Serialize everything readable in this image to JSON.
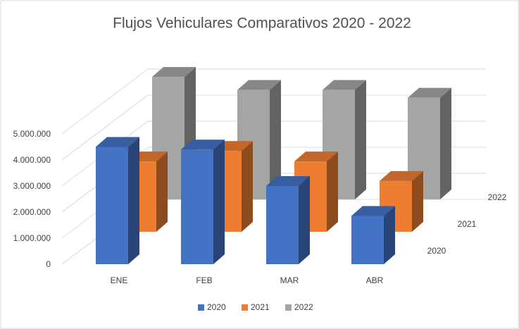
{
  "chart_data": {
    "type": "bar3d",
    "title": "Flujos Vehiculares Comparativos 2020 - 2022",
    "categories": [
      "ENE",
      "FEB",
      "MAR",
      "ABR"
    ],
    "series": [
      {
        "name": "2020",
        "color": "#4472c4",
        "values": [
          4500000,
          4400000,
          3000000,
          1850000
        ]
      },
      {
        "name": "2021",
        "color": "#ed7d31",
        "values": [
          2700000,
          3100000,
          2700000,
          1950000
        ]
      },
      {
        "name": "2022",
        "color": "#a5a5a5",
        "values": [
          4700000,
          4200000,
          4200000,
          3900000
        ]
      }
    ],
    "ylim": [
      0,
      5000000
    ],
    "yticks": [
      0,
      {
        "value": 1000000,
        "label": "1.000.000"
      },
      {
        "value": 2000000,
        "label": "2.000.000"
      },
      {
        "value": 3000000,
        "label": "3.000.000"
      },
      {
        "value": 4000000,
        "label": "4.000.000"
      },
      {
        "value": 5000000,
        "label": "5.000.000"
      }
    ],
    "grid": true,
    "legend": "bottom"
  }
}
